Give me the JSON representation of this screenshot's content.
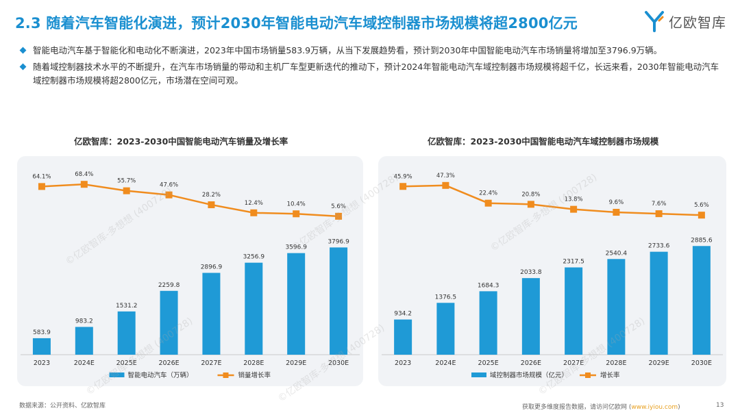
{
  "header": {
    "title": "2.3 随着汽车智能化演进，预计2030年智能电动汽车域控制器市场规模将超2800亿元",
    "brand": "亿欧智库"
  },
  "bullets": [
    "智能电动汽车基于智能化和电动化不断演进，2023年中国市场销量583.9万辆，从当下发展趋势看，预计到2030年中国智能电动汽车市场销量将增加至3796.9万辆。",
    "随着域控制器技术水平的不断提升，在汽车市场销量的带动和主机厂车型更新迭代的推动下，预计2024年智能电动汽车域控制器市场规模将超千亿，长远来看，2030年智能电动汽车域控制器市场规模将超2800亿元，市场潜在空间可观。"
  ],
  "chart_data": [
    {
      "type": "bar",
      "title": "亿欧智库：2023-2030中国智能电动汽车销量及增长率",
      "categories": [
        "2023",
        "2024E",
        "2025E",
        "2026E",
        "2027E",
        "2028E",
        "2029E",
        "2030E"
      ],
      "series": [
        {
          "name": "智能电动汽车（万辆）",
          "type": "bar",
          "values": [
            583.9,
            983.2,
            1531.2,
            2259.8,
            2896.9,
            3256.9,
            3596.9,
            3796.9
          ],
          "labels": [
            "583.9",
            "983.2",
            "1531.2",
            "2259.8",
            "2896.9",
            "3256.9",
            "3596.9",
            "3796.9"
          ]
        },
        {
          "name": "销量增长率",
          "type": "line",
          "values": [
            64.1,
            68.4,
            55.7,
            47.6,
            28.2,
            12.4,
            10.4,
            5.6
          ],
          "labels": [
            "64.1%",
            "68.4%",
            "55.7%",
            "47.6%",
            "28.2%",
            "12.4%",
            "10.4%",
            "5.6%"
          ]
        }
      ],
      "bar_max": 4000,
      "line_range": [
        0,
        70
      ],
      "colors": {
        "bar": "#1f9ad6",
        "line": "#f08c1e"
      },
      "legend_position": "bottom"
    },
    {
      "type": "bar",
      "title": "亿欧智库：2023-2030中国智能电动汽车域控制器市场规模",
      "categories": [
        "2023",
        "2024E",
        "2025E",
        "2026E",
        "2027E",
        "2028E",
        "2029E",
        "2030E"
      ],
      "series": [
        {
          "name": "域控制器市场规模（亿元）",
          "type": "bar",
          "values": [
            934.2,
            1376.5,
            1684.3,
            2033.8,
            2317.5,
            2540.4,
            2733.6,
            2885.6
          ],
          "labels": [
            "934.2",
            "1376.5",
            "1684.3",
            "2033.8",
            "2317.5",
            "2540.4",
            "2733.6",
            "2885.6"
          ]
        },
        {
          "name": "增长率",
          "type": "line",
          "values": [
            45.9,
            47.3,
            22.4,
            20.8,
            13.8,
            9.6,
            7.6,
            5.6
          ],
          "labels": [
            "45.9%",
            "47.3%",
            "22.4%",
            "20.8%",
            "13.8%",
            "9.6%",
            "7.6%",
            "5.6%"
          ]
        }
      ],
      "bar_max": 3000,
      "line_range": [
        0,
        50
      ],
      "colors": {
        "bar": "#1f9ad6",
        "line": "#f08c1e"
      },
      "legend_position": "bottom"
    }
  ],
  "watermark_text": "©亿欧智库-多想想 (400728)",
  "footer": {
    "source": "数据来源：公开资料、亿欧智库",
    "more_text": "获取更多维度报告数据，请访问亿欧网",
    "link_text": "www.iyiou.com",
    "page": "13"
  }
}
